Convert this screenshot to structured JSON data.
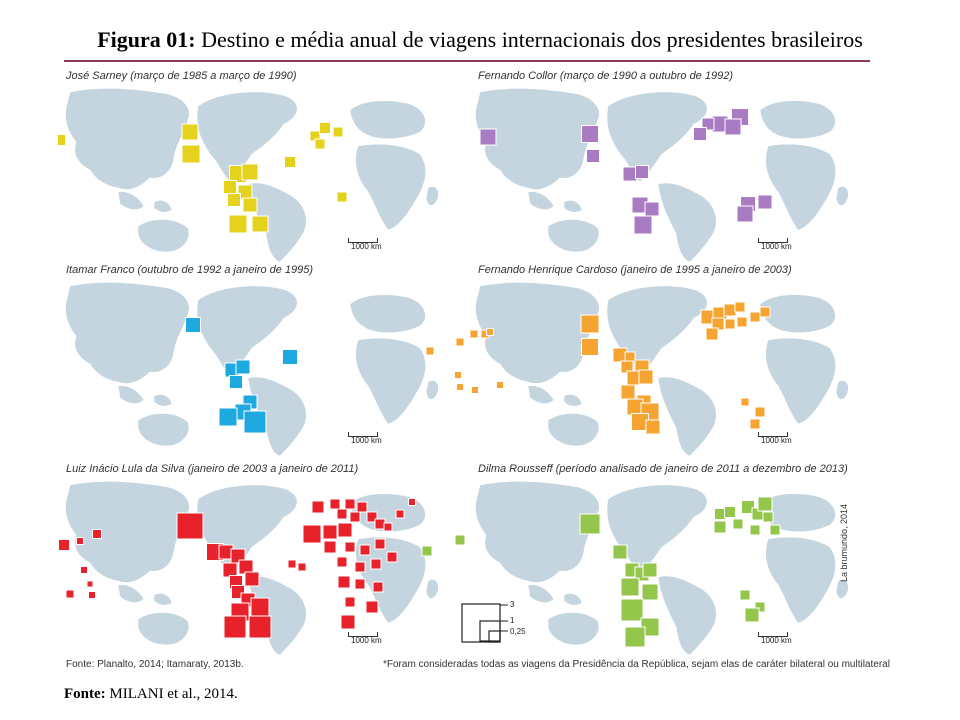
{
  "figure": {
    "title_prefix": "Figura 01:",
    "title_text": " Destino e média anual de viagens internacionais dos presidentes brasileiros",
    "fonte_prefix": "Fonte:",
    "fonte_text": " MILANI et al., 2014."
  },
  "panels": [
    {
      "title": "José Sarney (março de 1985 a março de 1990)",
      "color": "#e4d21c",
      "scale": "1000 km",
      "markers": [
        [
          60,
          78,
          11
        ],
        [
          190,
          70,
          16
        ],
        [
          191,
          92,
          18
        ],
        [
          238,
          112,
          17
        ],
        [
          250,
          110,
          16
        ],
        [
          230,
          125,
          13
        ],
        [
          245,
          130,
          14
        ],
        [
          234,
          138,
          13
        ],
        [
          250,
          143,
          14
        ],
        [
          238,
          162,
          18
        ],
        [
          260,
          162,
          16
        ],
        [
          290,
          100,
          11
        ],
        [
          315,
          74,
          10
        ],
        [
          325,
          66,
          11
        ],
        [
          338,
          70,
          10
        ],
        [
          320,
          82,
          10
        ],
        [
          342,
          135,
          10
        ]
      ]
    },
    {
      "title": "Fernando Collor (março de 1990 a outubro de 1992)",
      "color": "#a97bc2",
      "scale": "1000 km",
      "markers": [
        [
          488,
          75,
          16
        ],
        [
          590,
          72,
          17
        ],
        [
          593,
          94,
          13
        ],
        [
          630,
          112,
          14
        ],
        [
          642,
          110,
          13
        ],
        [
          640,
          143,
          16
        ],
        [
          652,
          147,
          14
        ],
        [
          643,
          163,
          18
        ],
        [
          720,
          62,
          16
        ],
        [
          740,
          55,
          17
        ],
        [
          733,
          65,
          16
        ],
        [
          708,
          62,
          12
        ],
        [
          700,
          72,
          13
        ],
        [
          748,
          142,
          15
        ],
        [
          745,
          152,
          16
        ],
        [
          765,
          140,
          14
        ]
      ]
    },
    {
      "title": "Itamar Franco (outubro de 1992 a janeiro de 1995)",
      "color": "#1ea9e1",
      "scale": "1000 km",
      "markers": [
        [
          193,
          263,
          15
        ],
        [
          290,
          295,
          15
        ],
        [
          232,
          308,
          14
        ],
        [
          243,
          305,
          14
        ],
        [
          236,
          320,
          13
        ],
        [
          250,
          340,
          14
        ],
        [
          243,
          350,
          16
        ],
        [
          228,
          355,
          18
        ],
        [
          255,
          360,
          22
        ]
      ]
    },
    {
      "title": "Fernando Henrique Cardoso (janeiro de 1995 a janeiro de 2003)",
      "color": "#f5a431",
      "scale": "1000 km",
      "markers": [
        [
          430,
          289,
          8
        ],
        [
          460,
          280,
          8
        ],
        [
          474,
          272,
          8
        ],
        [
          485,
          272,
          8
        ],
        [
          490,
          270,
          7
        ],
        [
          458,
          313,
          7
        ],
        [
          460,
          325,
          7
        ],
        [
          475,
          328,
          7
        ],
        [
          500,
          323,
          7
        ],
        [
          590,
          262,
          18
        ],
        [
          590,
          285,
          17
        ],
        [
          620,
          293,
          14
        ],
        [
          630,
          295,
          10
        ],
        [
          627,
          305,
          12
        ],
        [
          642,
          305,
          14
        ],
        [
          634,
          316,
          14
        ],
        [
          646,
          315,
          14
        ],
        [
          628,
          330,
          14
        ],
        [
          644,
          340,
          14
        ],
        [
          635,
          345,
          16
        ],
        [
          650,
          350,
          18
        ],
        [
          640,
          360,
          17
        ],
        [
          653,
          365,
          14
        ],
        [
          708,
          255,
          14
        ],
        [
          720,
          252,
          14
        ],
        [
          730,
          248,
          12
        ],
        [
          740,
          245,
          10
        ],
        [
          718,
          262,
          12
        ],
        [
          730,
          262,
          10
        ],
        [
          742,
          260,
          10
        ],
        [
          712,
          272,
          12
        ],
        [
          755,
          255,
          10
        ],
        [
          765,
          250,
          10
        ],
        [
          745,
          340,
          8
        ],
        [
          760,
          350,
          10
        ],
        [
          755,
          362,
          10
        ]
      ]
    },
    {
      "title": "Luiz Inácio Lula da Silva (janeiro de 2003 a janeiro de 2011)",
      "color": "#e8222b",
      "scale": "1000 km",
      "markers": [
        [
          30,
          462,
          6
        ],
        [
          28,
          493,
          9
        ],
        [
          64,
          483,
          11
        ],
        [
          80,
          479,
          7
        ],
        [
          97,
          472,
          9
        ],
        [
          84,
          508,
          7
        ],
        [
          90,
          522,
          6
        ],
        [
          70,
          532,
          8
        ],
        [
          92,
          533,
          7
        ],
        [
          190,
          464,
          26
        ],
        [
          215,
          490,
          17
        ],
        [
          226,
          490,
          14
        ],
        [
          238,
          494,
          14
        ],
        [
          230,
          508,
          14
        ],
        [
          246,
          505,
          14
        ],
        [
          236,
          520,
          13
        ],
        [
          252,
          517,
          14
        ],
        [
          238,
          530,
          13
        ],
        [
          248,
          538,
          14
        ],
        [
          240,
          550,
          18
        ],
        [
          260,
          545,
          18
        ],
        [
          235,
          565,
          22
        ],
        [
          260,
          565,
          22
        ],
        [
          292,
          502,
          8
        ],
        [
          302,
          505,
          8
        ],
        [
          312,
          472,
          18
        ],
        [
          330,
          470,
          14
        ],
        [
          345,
          468,
          14
        ],
        [
          318,
          445,
          12
        ],
        [
          335,
          442,
          10
        ],
        [
          350,
          442,
          10
        ],
        [
          362,
          445,
          10
        ],
        [
          342,
          452,
          10
        ],
        [
          355,
          455,
          10
        ],
        [
          372,
          455,
          10
        ],
        [
          380,
          462,
          10
        ],
        [
          388,
          465,
          8
        ],
        [
          330,
          485,
          12
        ],
        [
          350,
          485,
          10
        ],
        [
          365,
          488,
          10
        ],
        [
          380,
          482,
          10
        ],
        [
          342,
          500,
          10
        ],
        [
          360,
          505,
          10
        ],
        [
          376,
          502,
          10
        ],
        [
          392,
          495,
          10
        ],
        [
          344,
          520,
          12
        ],
        [
          360,
          522,
          10
        ],
        [
          378,
          525,
          10
        ],
        [
          350,
          540,
          10
        ],
        [
          372,
          545,
          12
        ],
        [
          348,
          560,
          14
        ],
        [
          400,
          452,
          8
        ],
        [
          412,
          440,
          7
        ]
      ]
    },
    {
      "title": "Dilma Rousseff (período analisado de janeiro de 2011 a dezembro de 2013)",
      "color": "#95c64c",
      "scale": "1000 km",
      "markers": [
        [
          427,
          489,
          10
        ],
        [
          460,
          478,
          10
        ],
        [
          590,
          462,
          20
        ],
        [
          620,
          490,
          14
        ],
        [
          632,
          508,
          14
        ],
        [
          642,
          512,
          14
        ],
        [
          650,
          508,
          14
        ],
        [
          630,
          525,
          18
        ],
        [
          650,
          530,
          16
        ],
        [
          632,
          548,
          22
        ],
        [
          650,
          565,
          18
        ],
        [
          635,
          575,
          20
        ],
        [
          720,
          452,
          11
        ],
        [
          730,
          450,
          11
        ],
        [
          748,
          445,
          13
        ],
        [
          758,
          452,
          12
        ],
        [
          768,
          455,
          10
        ],
        [
          720,
          465,
          12
        ],
        [
          738,
          462,
          10
        ],
        [
          755,
          468,
          10
        ],
        [
          775,
          468,
          10
        ],
        [
          765,
          442,
          14
        ],
        [
          745,
          533,
          10
        ],
        [
          760,
          545,
          10
        ],
        [
          752,
          553,
          14
        ]
      ]
    }
  ],
  "legend": {
    "labels": [
      "3",
      "1",
      "0,25"
    ]
  },
  "footer": {
    "source": "Fonte: Planalto, 2014; Itamaraty, 2013b.",
    "note": "*Foram consideradas todas as viagens da Presidência da República, sejam elas de caráter bilateral ou multilateral",
    "credit": "La brumundo, 2014"
  }
}
